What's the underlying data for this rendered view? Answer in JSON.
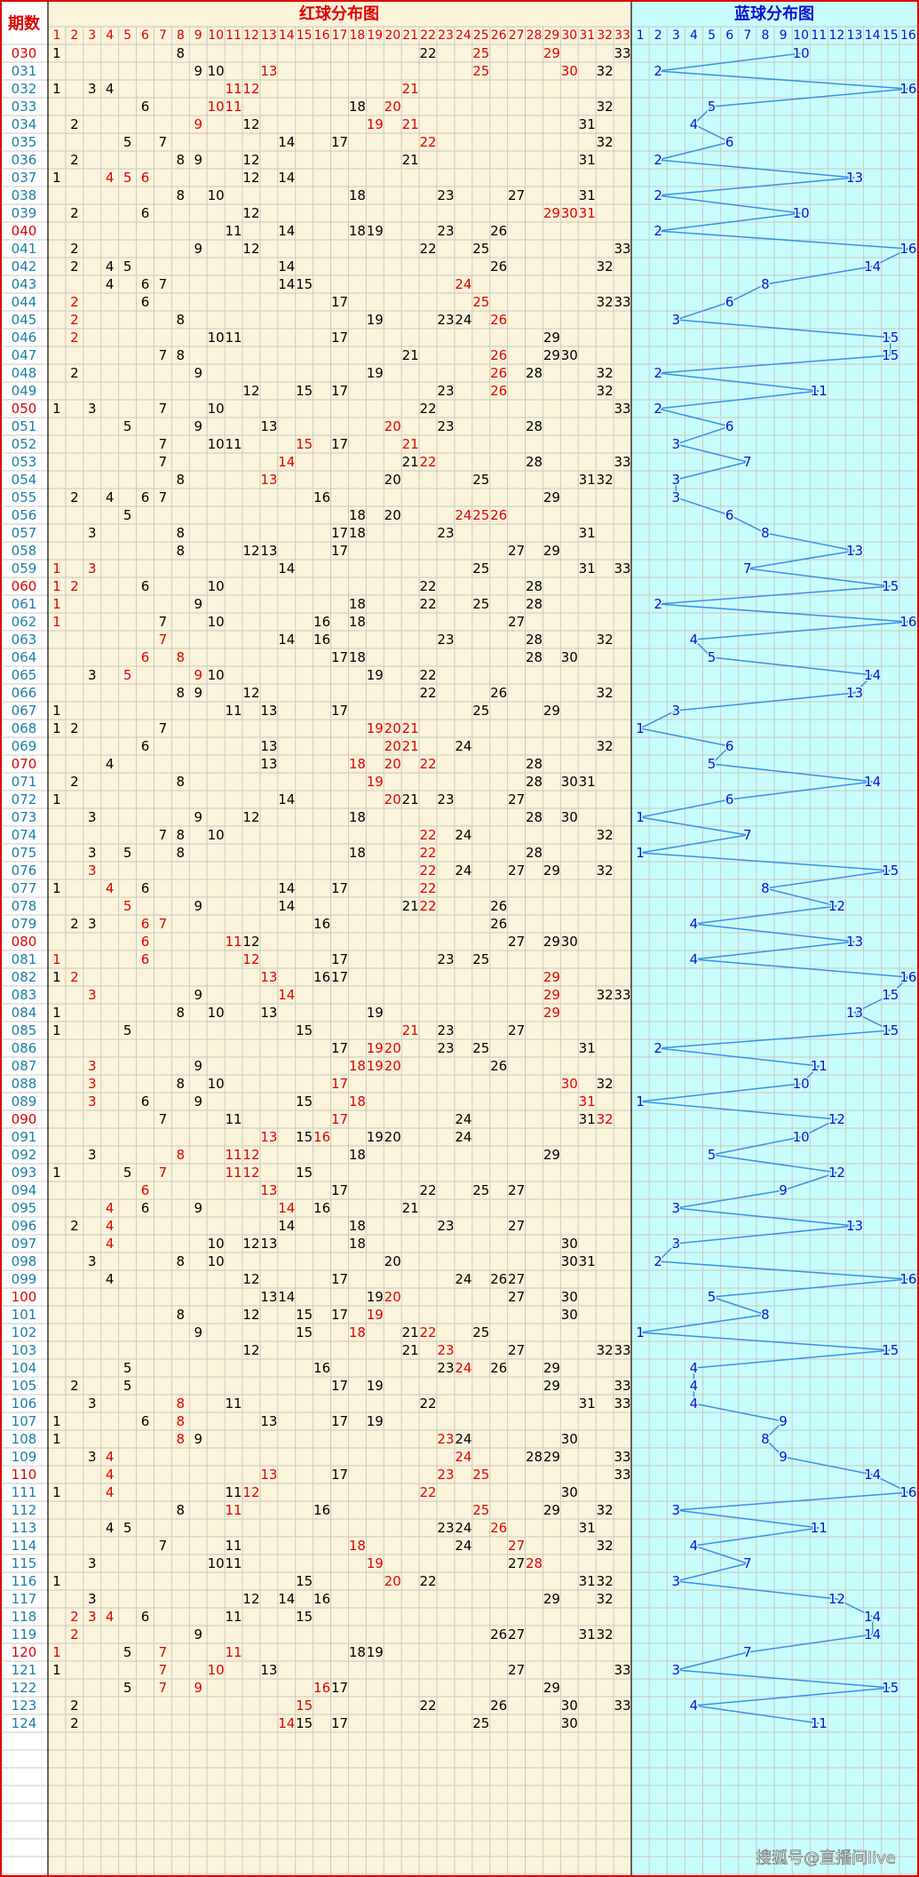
{
  "header": {
    "issue_label": "期数",
    "red_title": "红球分布图",
    "blue_title": "蓝球分布图"
  },
  "red_columns": [
    1,
    2,
    3,
    4,
    5,
    6,
    7,
    8,
    9,
    10,
    11,
    12,
    13,
    14,
    15,
    16,
    17,
    18,
    19,
    20,
    21,
    22,
    23,
    24,
    25,
    26,
    27,
    28,
    29,
    30,
    31,
    32,
    33
  ],
  "blue_columns": [
    1,
    2,
    3,
    4,
    5,
    6,
    7,
    8,
    9,
    10,
    11,
    12,
    13,
    14,
    15,
    16
  ],
  "rows": [
    {
      "issue": "030",
      "red": [
        1,
        8,
        22,
        25,
        29,
        33
      ],
      "hot": [
        25,
        29
      ],
      "blue": 10
    },
    {
      "issue": "031",
      "red": [
        9,
        10,
        13,
        25,
        30,
        32
      ],
      "hot": [
        13,
        25,
        30
      ],
      "blue": 2
    },
    {
      "issue": "032",
      "red": [
        1,
        3,
        4,
        11,
        12,
        21
      ],
      "hot": [
        11,
        12,
        21
      ],
      "blue": 16
    },
    {
      "issue": "033",
      "red": [
        6,
        10,
        11,
        18,
        20,
        32
      ],
      "hot": [
        10,
        11,
        20
      ],
      "blue": 5
    },
    {
      "issue": "034",
      "red": [
        2,
        9,
        12,
        19,
        21,
        31
      ],
      "hot": [
        9,
        19,
        21
      ],
      "blue": 4
    },
    {
      "issue": "035",
      "red": [
        5,
        7,
        14,
        17,
        22,
        32
      ],
      "hot": [
        22
      ],
      "blue": 6
    },
    {
      "issue": "036",
      "red": [
        2,
        8,
        9,
        12,
        21,
        31
      ],
      "hot": [],
      "blue": 2
    },
    {
      "issue": "037",
      "red": [
        1,
        4,
        5,
        6,
        12,
        14
      ],
      "hot": [
        4,
        5,
        6
      ],
      "blue": 13
    },
    {
      "issue": "038",
      "red": [
        8,
        10,
        18,
        23,
        27,
        31
      ],
      "hot": [],
      "blue": 2
    },
    {
      "issue": "039",
      "red": [
        2,
        6,
        12,
        29,
        30,
        31
      ],
      "hot": [
        29,
        30,
        31
      ],
      "blue": 10
    },
    {
      "issue": "040",
      "red": [
        11,
        14,
        18,
        19,
        23,
        26
      ],
      "hot": [],
      "blue": 2
    },
    {
      "issue": "041",
      "red": [
        2,
        9,
        12,
        22,
        25,
        33
      ],
      "hot": [],
      "blue": 16
    },
    {
      "issue": "042",
      "red": [
        2,
        4,
        5,
        14,
        26,
        32
      ],
      "hot": [],
      "blue": 14
    },
    {
      "issue": "043",
      "red": [
        4,
        6,
        7,
        14,
        15,
        24
      ],
      "hot": [
        24
      ],
      "blue": 8
    },
    {
      "issue": "044",
      "red": [
        2,
        6,
        17,
        25,
        32,
        33
      ],
      "hot": [
        2,
        25
      ],
      "blue": 6
    },
    {
      "issue": "045",
      "red": [
        2,
        8,
        19,
        23,
        24,
        26
      ],
      "hot": [
        2,
        26
      ],
      "blue": 3
    },
    {
      "issue": "046",
      "red": [
        2,
        10,
        11,
        17,
        29
      ],
      "hot": [
        2
      ],
      "blue": 15
    },
    {
      "issue": "047",
      "red": [
        7,
        8,
        21,
        26,
        29,
        30
      ],
      "hot": [
        26
      ],
      "blue": 15
    },
    {
      "issue": "048",
      "red": [
        2,
        9,
        19,
        26,
        28,
        32
      ],
      "hot": [
        26
      ],
      "blue": 2
    },
    {
      "issue": "049",
      "red": [
        12,
        15,
        17,
        23,
        26,
        32
      ],
      "hot": [
        26
      ],
      "blue": 11
    },
    {
      "issue": "050",
      "red": [
        1,
        3,
        7,
        10,
        22,
        33
      ],
      "hot": [],
      "blue": 2
    },
    {
      "issue": "051",
      "red": [
        5,
        9,
        13,
        20,
        23,
        28
      ],
      "hot": [
        20
      ],
      "blue": 6
    },
    {
      "issue": "052",
      "red": [
        7,
        10,
        11,
        15,
        17,
        21
      ],
      "hot": [
        15,
        21
      ],
      "blue": 3
    },
    {
      "issue": "053",
      "red": [
        7,
        14,
        21,
        22,
        28,
        33
      ],
      "hot": [
        14,
        22
      ],
      "blue": 7
    },
    {
      "issue": "054",
      "red": [
        8,
        13,
        20,
        25,
        31,
        32
      ],
      "hot": [
        13
      ],
      "blue": 3
    },
    {
      "issue": "055",
      "red": [
        2,
        4,
        6,
        7,
        16,
        29
      ],
      "hot": [],
      "blue": 3
    },
    {
      "issue": "056",
      "red": [
        5,
        18,
        20,
        24,
        25,
        26
      ],
      "hot": [
        24,
        25,
        26
      ],
      "blue": 6
    },
    {
      "issue": "057",
      "red": [
        3,
        8,
        17,
        18,
        23,
        31
      ],
      "hot": [],
      "blue": 8
    },
    {
      "issue": "058",
      "red": [
        8,
        12,
        13,
        17,
        27,
        29
      ],
      "hot": [],
      "blue": 13
    },
    {
      "issue": "059",
      "red": [
        1,
        3,
        14,
        25,
        31,
        33
      ],
      "hot": [
        1,
        3
      ],
      "blue": 7
    },
    {
      "issue": "060",
      "red": [
        1,
        2,
        6,
        10,
        22,
        28
      ],
      "hot": [
        1,
        2
      ],
      "blue": 15
    },
    {
      "issue": "061",
      "red": [
        1,
        9,
        18,
        22,
        25,
        28
      ],
      "hot": [
        1
      ],
      "blue": 2
    },
    {
      "issue": "062",
      "red": [
        1,
        7,
        10,
        16,
        18,
        27
      ],
      "hot": [
        1
      ],
      "blue": 16
    },
    {
      "issue": "063",
      "red": [
        7,
        14,
        16,
        23,
        28,
        32
      ],
      "hot": [
        7
      ],
      "blue": 4
    },
    {
      "issue": "064",
      "red": [
        6,
        8,
        17,
        18,
        28,
        30
      ],
      "hot": [
        6,
        8
      ],
      "blue": 5
    },
    {
      "issue": "065",
      "red": [
        3,
        5,
        9,
        10,
        19,
        22
      ],
      "hot": [
        5,
        9
      ],
      "blue": 14
    },
    {
      "issue": "066",
      "red": [
        8,
        9,
        12,
        22,
        26,
        32
      ],
      "hot": [],
      "blue": 13
    },
    {
      "issue": "067",
      "red": [
        1,
        11,
        13,
        17,
        25,
        29
      ],
      "hot": [],
      "blue": 3
    },
    {
      "issue": "068",
      "red": [
        1,
        2,
        7,
        19,
        20,
        21
      ],
      "hot": [
        19,
        20,
        21
      ],
      "blue": 1
    },
    {
      "issue": "069",
      "red": [
        6,
        13,
        20,
        21,
        24,
        32
      ],
      "hot": [
        20,
        21
      ],
      "blue": 6
    },
    {
      "issue": "070",
      "red": [
        4,
        13,
        18,
        20,
        22,
        28
      ],
      "hot": [
        18,
        20,
        22
      ],
      "blue": 5
    },
    {
      "issue": "071",
      "red": [
        2,
        8,
        19,
        28,
        30,
        31
      ],
      "hot": [
        19
      ],
      "blue": 14
    },
    {
      "issue": "072",
      "red": [
        1,
        14,
        20,
        21,
        23,
        27
      ],
      "hot": [
        20
      ],
      "blue": 6
    },
    {
      "issue": "073",
      "red": [
        3,
        9,
        12,
        18,
        28,
        30
      ],
      "hot": [],
      "blue": 1
    },
    {
      "issue": "074",
      "red": [
        7,
        8,
        10,
        22,
        24,
        32
      ],
      "hot": [
        22
      ],
      "blue": 7
    },
    {
      "issue": "075",
      "red": [
        3,
        5,
        8,
        18,
        22,
        28
      ],
      "hot": [
        22
      ],
      "blue": 1
    },
    {
      "issue": "076",
      "red": [
        3,
        22,
        24,
        27,
        29,
        32
      ],
      "hot": [
        3,
        22
      ],
      "blue": 15
    },
    {
      "issue": "077",
      "red": [
        1,
        4,
        6,
        14,
        17,
        22
      ],
      "hot": [
        4,
        22
      ],
      "blue": 8
    },
    {
      "issue": "078",
      "red": [
        5,
        9,
        14,
        21,
        22,
        26
      ],
      "hot": [
        5,
        22
      ],
      "blue": 12
    },
    {
      "issue": "079",
      "red": [
        2,
        3,
        6,
        7,
        16,
        26
      ],
      "hot": [
        6,
        7
      ],
      "blue": 4
    },
    {
      "issue": "080",
      "red": [
        6,
        11,
        12,
        27,
        29,
        30
      ],
      "hot": [
        6,
        11
      ],
      "blue": 13
    },
    {
      "issue": "081",
      "red": [
        1,
        6,
        12,
        17,
        23,
        25
      ],
      "hot": [
        1,
        6,
        12
      ],
      "blue": 4
    },
    {
      "issue": "082",
      "red": [
        1,
        2,
        13,
        16,
        17,
        29
      ],
      "hot": [
        2,
        13,
        29
      ],
      "blue": 16
    },
    {
      "issue": "083",
      "red": [
        3,
        9,
        14,
        29,
        32,
        33
      ],
      "hot": [
        3,
        14,
        29
      ],
      "blue": 15
    },
    {
      "issue": "084",
      "red": [
        1,
        8,
        10,
        13,
        19,
        29
      ],
      "hot": [
        29
      ],
      "blue": 13
    },
    {
      "issue": "085",
      "red": [
        1,
        5,
        15,
        21,
        23,
        27
      ],
      "hot": [
        21
      ],
      "blue": 15
    },
    {
      "issue": "086",
      "red": [
        17,
        19,
        20,
        23,
        25,
        31
      ],
      "hot": [
        19,
        20
      ],
      "blue": 2
    },
    {
      "issue": "087",
      "red": [
        3,
        9,
        18,
        19,
        20,
        26
      ],
      "hot": [
        3,
        18,
        19,
        20
      ],
      "blue": 11
    },
    {
      "issue": "088",
      "red": [
        3,
        8,
        10,
        17,
        30,
        32
      ],
      "hot": [
        3,
        17,
        30
      ],
      "blue": 10
    },
    {
      "issue": "089",
      "red": [
        3,
        6,
        9,
        15,
        18,
        31
      ],
      "hot": [
        3,
        18,
        31
      ],
      "blue": 1
    },
    {
      "issue": "090",
      "red": [
        7,
        11,
        17,
        24,
        31,
        32
      ],
      "hot": [
        17,
        32
      ],
      "blue": 12
    },
    {
      "issue": "091",
      "red": [
        13,
        15,
        16,
        19,
        20,
        24
      ],
      "hot": [
        13,
        16
      ],
      "blue": 10
    },
    {
      "issue": "092",
      "red": [
        3,
        8,
        11,
        12,
        18,
        29
      ],
      "hot": [
        8,
        11,
        12
      ],
      "blue": 5
    },
    {
      "issue": "093",
      "red": [
        1,
        5,
        7,
        11,
        12,
        15
      ],
      "hot": [
        7,
        11,
        12
      ],
      "blue": 12
    },
    {
      "issue": "094",
      "red": [
        6,
        13,
        17,
        22,
        25,
        27
      ],
      "hot": [
        6,
        13
      ],
      "blue": 9
    },
    {
      "issue": "095",
      "red": [
        4,
        6,
        9,
        14,
        16,
        21
      ],
      "hot": [
        4,
        14
      ],
      "blue": 3
    },
    {
      "issue": "096",
      "red": [
        2,
        4,
        14,
        18,
        23,
        27
      ],
      "hot": [
        4
      ],
      "blue": 13
    },
    {
      "issue": "097",
      "red": [
        4,
        10,
        12,
        13,
        18,
        30
      ],
      "hot": [
        4
      ],
      "blue": 3
    },
    {
      "issue": "098",
      "red": [
        3,
        8,
        10,
        20,
        30,
        31
      ],
      "hot": [],
      "blue": 2
    },
    {
      "issue": "099",
      "red": [
        4,
        12,
        17,
        24,
        26,
        27
      ],
      "hot": [],
      "blue": 16
    },
    {
      "issue": "100",
      "red": [
        13,
        14,
        19,
        20,
        27,
        30
      ],
      "hot": [
        20
      ],
      "blue": 5
    },
    {
      "issue": "101",
      "red": [
        8,
        12,
        15,
        17,
        19,
        30
      ],
      "hot": [
        19
      ],
      "blue": 8
    },
    {
      "issue": "102",
      "red": [
        9,
        15,
        18,
        21,
        22,
        25
      ],
      "hot": [
        18,
        22
      ],
      "blue": 1
    },
    {
      "issue": "103",
      "red": [
        12,
        21,
        23,
        27,
        32,
        33
      ],
      "hot": [
        23
      ],
      "blue": 15
    },
    {
      "issue": "104",
      "red": [
        5,
        16,
        23,
        24,
        26,
        29
      ],
      "hot": [
        24
      ],
      "blue": 4
    },
    {
      "issue": "105",
      "red": [
        2,
        5,
        17,
        19,
        29,
        33
      ],
      "hot": [],
      "blue": 4
    },
    {
      "issue": "106",
      "red": [
        3,
        8,
        11,
        22,
        31,
        33
      ],
      "hot": [
        8
      ],
      "blue": 4
    },
    {
      "issue": "107",
      "red": [
        1,
        6,
        8,
        13,
        17,
        19
      ],
      "hot": [
        8
      ],
      "blue": 9
    },
    {
      "issue": "108",
      "red": [
        1,
        8,
        9,
        23,
        24,
        30
      ],
      "hot": [
        8,
        23
      ],
      "blue": 8
    },
    {
      "issue": "109",
      "red": [
        3,
        4,
        24,
        28,
        29,
        33
      ],
      "hot": [
        4,
        24
      ],
      "blue": 9
    },
    {
      "issue": "110",
      "red": [
        4,
        13,
        17,
        23,
        25,
        33
      ],
      "hot": [
        4,
        13,
        23,
        25
      ],
      "blue": 14
    },
    {
      "issue": "111",
      "red": [
        1,
        4,
        11,
        12,
        22,
        30
      ],
      "hot": [
        4,
        12,
        22
      ],
      "blue": 16
    },
    {
      "issue": "112",
      "red": [
        8,
        11,
        16,
        25,
        29,
        32
      ],
      "hot": [
        11,
        25
      ],
      "blue": 3
    },
    {
      "issue": "113",
      "red": [
        4,
        5,
        23,
        24,
        26,
        31
      ],
      "hot": [
        26
      ],
      "blue": 11
    },
    {
      "issue": "114",
      "red": [
        7,
        11,
        18,
        24,
        27,
        32
      ],
      "hot": [
        18,
        27
      ],
      "blue": 4
    },
    {
      "issue": "115",
      "red": [
        3,
        10,
        11,
        19,
        27,
        28
      ],
      "hot": [
        19,
        28
      ],
      "blue": 7
    },
    {
      "issue": "116",
      "red": [
        1,
        15,
        20,
        22,
        31,
        32
      ],
      "hot": [
        20
      ],
      "blue": 3
    },
    {
      "issue": "117",
      "red": [
        3,
        12,
        14,
        16,
        29,
        32
      ],
      "hot": [],
      "blue": 12
    },
    {
      "issue": "118",
      "red": [
        2,
        3,
        4,
        6,
        11,
        15
      ],
      "hot": [
        2,
        3,
        4
      ],
      "blue": 14
    },
    {
      "issue": "119",
      "red": [
        2,
        9,
        26,
        27,
        31,
        32
      ],
      "hot": [
        2
      ],
      "blue": 14
    },
    {
      "issue": "120",
      "red": [
        1,
        5,
        7,
        11,
        18,
        19
      ],
      "hot": [
        1,
        7,
        11
      ],
      "blue": 7
    },
    {
      "issue": "121",
      "red": [
        1,
        7,
        10,
        13,
        27,
        33
      ],
      "hot": [
        7,
        10
      ],
      "blue": 3
    },
    {
      "issue": "122",
      "red": [
        5,
        7,
        9,
        16,
        17,
        29
      ],
      "hot": [
        7,
        9,
        16
      ],
      "blue": 15
    },
    {
      "issue": "123",
      "red": [
        2,
        15,
        22,
        26,
        30,
        33
      ],
      "hot": [
        15
      ],
      "blue": 4
    },
    {
      "issue": "124",
      "red": [
        2,
        14,
        15,
        17,
        25,
        30
      ],
      "hot": [
        14
      ],
      "blue": 11
    }
  ],
  "watermark": "搜狐号@直播间live"
}
